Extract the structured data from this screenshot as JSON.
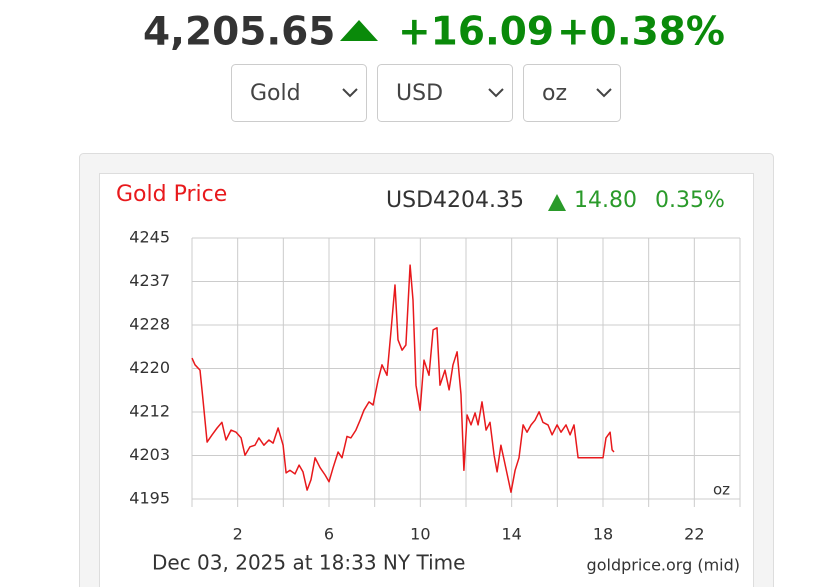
{
  "header": {
    "price": "4,205.65",
    "change": "+16.09",
    "change_pct": "+0.38%"
  },
  "selectors": [
    "Gold",
    "USD",
    "oz"
  ],
  "chart_data": {
    "type": "line",
    "title": "Gold Price",
    "quote": "USD4204.35",
    "quote_change": "14.80",
    "quote_change_pct": "0.35%",
    "unit": "oz",
    "footer": "Dec 03, 2025 at 18:33 NY Time",
    "source": "goldprice.org (mid)",
    "color": "#e8191c",
    "grid": true,
    "xlim": [
      0,
      24
    ],
    "xticks": [
      2,
      6,
      10,
      14,
      18,
      22
    ],
    "xminor": [
      0,
      4,
      8,
      12,
      16,
      20,
      24
    ],
    "ylim": [
      4195,
      4245
    ],
    "yticks": [
      {
        "value": 4195,
        "label": "4195"
      },
      {
        "value": 4203.33,
        "label": "4203"
      },
      {
        "value": 4211.67,
        "label": "4212"
      },
      {
        "value": 4220,
        "label": "4220"
      },
      {
        "value": 4228.33,
        "label": "4228"
      },
      {
        "value": 4236.67,
        "label": "4237"
      },
      {
        "value": 4245,
        "label": "4245"
      }
    ],
    "x": [
      0,
      0.13,
      0.35,
      0.48,
      0.66,
      0.88,
      1.1,
      1.31,
      1.49,
      1.71,
      1.93,
      2.15,
      2.32,
      2.54,
      2.76,
      2.93,
      3.15,
      3.37,
      3.55,
      3.77,
      3.99,
      4.12,
      4.29,
      4.51,
      4.69,
      4.86,
      5.04,
      5.21,
      5.39,
      5.61,
      5.83,
      6.0,
      6.18,
      6.4,
      6.57,
      6.79,
      6.96,
      7.18,
      7.36,
      7.53,
      7.75,
      7.93,
      8.15,
      8.32,
      8.54,
      8.72,
      8.89,
      9.02,
      9.2,
      9.37,
      9.55,
      9.68,
      9.81,
      9.99,
      10.16,
      10.38,
      10.56,
      10.73,
      10.86,
      11.08,
      11.26,
      11.43,
      11.61,
      11.78,
      11.91,
      12.05,
      12.22,
      12.4,
      12.53,
      12.7,
      12.88,
      13.05,
      13.23,
      13.36,
      13.53,
      13.67,
      13.84,
      13.97,
      14.15,
      14.32,
      14.5,
      14.67,
      14.85,
      15.02,
      15.2,
      15.37,
      15.59,
      15.77,
      15.99,
      16.16,
      16.38,
      16.56,
      16.73,
      16.91,
      17.21,
      17.65,
      18.0,
      18.13,
      18.31,
      18.4,
      18.48
    ],
    "values": [
      4222.0,
      4220.7,
      4219.7,
      4214.0,
      4205.9,
      4207.3,
      4208.6,
      4209.7,
      4206.3,
      4208.2,
      4207.8,
      4206.7,
      4203.4,
      4205.0,
      4205.3,
      4206.7,
      4205.3,
      4206.3,
      4205.7,
      4208.6,
      4205.3,
      4200.0,
      4200.5,
      4199.8,
      4201.5,
      4200.2,
      4196.7,
      4198.7,
      4202.9,
      4201.0,
      4199.6,
      4198.3,
      4201.0,
      4204.0,
      4202.9,
      4207.0,
      4206.7,
      4208.2,
      4210.1,
      4212.0,
      4213.6,
      4213.0,
      4217.8,
      4220.7,
      4218.7,
      4227.4,
      4236.0,
      4225.5,
      4223.5,
      4224.5,
      4239.8,
      4233.1,
      4216.8,
      4212.0,
      4221.6,
      4218.7,
      4227.4,
      4227.8,
      4216.8,
      4219.7,
      4215.9,
      4220.7,
      4223.2,
      4215.0,
      4200.5,
      4211.1,
      4209.2,
      4211.5,
      4209.2,
      4213.6,
      4208.2,
      4209.7,
      4203.4,
      4200.2,
      4205.3,
      4202.5,
      4199.0,
      4196.3,
      4200.5,
      4202.9,
      4209.2,
      4207.8,
      4209.2,
      4210.1,
      4211.7,
      4209.7,
      4209.2,
      4207.3,
      4209.2,
      4207.8,
      4209.2,
      4207.3,
      4209.2,
      4202.9,
      4202.9,
      4202.9,
      4202.9,
      4206.7,
      4207.8,
      4204.4,
      4204.0
    ]
  }
}
